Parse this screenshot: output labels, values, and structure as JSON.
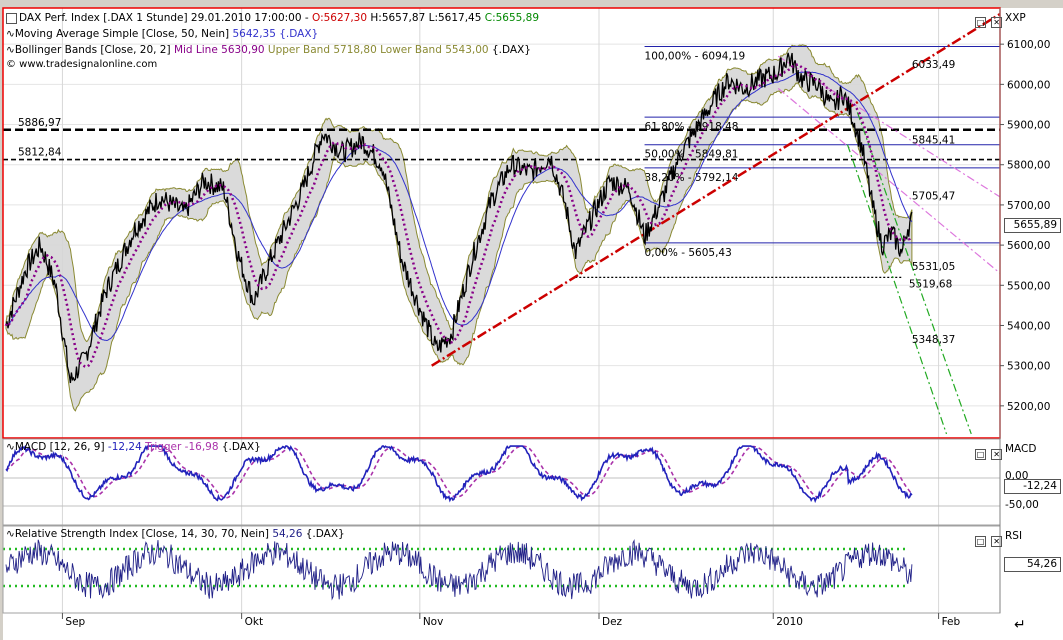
{
  "chart_data": [
    {
      "type": "line",
      "panel": "price",
      "header": {
        "title_prefix": "DAX Perf. Index [.DAX   1 Stunde] 29.01.2010 17:00:00 - ",
        "open": "O:5627,30",
        "high": "H:5657,87",
        "low": "L:5617,45",
        "close": "C:5655,89"
      },
      "legend": [
        {
          "label": "Moving Average Simple [Close, 50, Nein]",
          "value": "5642,35 {.DAX}"
        },
        {
          "label": "Bollinger Bands [Close, 20, 2]",
          "mid": "Mid Line 5630,90",
          "upper": "Upper Band 5718,80",
          "lower": "Lower Band 5543,00",
          "suffix": "{.DAX}"
        }
      ],
      "source": "© www.tradesignalonline.com",
      "ylim": [
        5120,
        6190
      ],
      "y_ticks": [
        "6100,00",
        "6000,00",
        "5900,00",
        "5800,00",
        "5700,00",
        "5600,00",
        "5500,00",
        "5400,00",
        "5300,00",
        "5200,00"
      ],
      "y_tick_values": [
        6100,
        6000,
        5900,
        5800,
        5700,
        5600,
        5500,
        5400,
        5300,
        5200
      ],
      "axis_label": "XXP",
      "last_value": "5655,89",
      "price_path": [
        [
          0.0,
          5400
        ],
        [
          0.02,
          5540
        ],
        [
          0.035,
          5600
        ],
        [
          0.05,
          5500
        ],
        [
          0.065,
          5260
        ],
        [
          0.08,
          5320
        ],
        [
          0.1,
          5480
        ],
        [
          0.13,
          5640
        ],
        [
          0.155,
          5720
        ],
        [
          0.18,
          5680
        ],
        [
          0.2,
          5760
        ],
        [
          0.22,
          5740
        ],
        [
          0.235,
          5570
        ],
        [
          0.25,
          5460
        ],
        [
          0.27,
          5580
        ],
        [
          0.3,
          5740
        ],
        [
          0.32,
          5880
        ],
        [
          0.34,
          5830
        ],
        [
          0.36,
          5860
        ],
        [
          0.38,
          5800
        ],
        [
          0.4,
          5560
        ],
        [
          0.42,
          5430
        ],
        [
          0.435,
          5340
        ],
        [
          0.45,
          5380
        ],
        [
          0.47,
          5560
        ],
        [
          0.49,
          5710
        ],
        [
          0.51,
          5800
        ],
        [
          0.53,
          5780
        ],
        [
          0.55,
          5820
        ],
        [
          0.565,
          5700
        ],
        [
          0.575,
          5580
        ],
        [
          0.59,
          5660
        ],
        [
          0.61,
          5760
        ],
        [
          0.63,
          5740
        ],
        [
          0.645,
          5620
        ],
        [
          0.66,
          5700
        ],
        [
          0.68,
          5820
        ],
        [
          0.7,
          5900
        ],
        [
          0.715,
          5960
        ],
        [
          0.73,
          6010
        ],
        [
          0.745,
          5990
        ],
        [
          0.76,
          6010
        ],
        [
          0.78,
          6030
        ],
        [
          0.79,
          6070
        ],
        [
          0.805,
          6010
        ],
        [
          0.82,
          6000
        ],
        [
          0.835,
          5940
        ],
        [
          0.845,
          5980
        ],
        [
          0.855,
          5920
        ],
        [
          0.865,
          5840
        ],
        [
          0.875,
          5700
        ],
        [
          0.885,
          5600
        ],
        [
          0.895,
          5630
        ],
        [
          0.905,
          5580
        ],
        [
          0.91,
          5640
        ],
        [
          0.915,
          5660
        ]
      ],
      "fib_levels": [
        {
          "label": "100,00% - 6094,19",
          "value": 6094.19
        },
        {
          "label": "61,80% - 5918,48",
          "value": 5918.48
        },
        {
          "label": "50,00% - 5849,81",
          "value": 5849.81
        },
        {
          "label": "38,20% - 5792,14",
          "value": 5792.14
        },
        {
          "label": "0,00% - 5605,43",
          "value": 5605.43
        }
      ],
      "horizontal_lines": [
        {
          "label": "5886,97",
          "value": 5886.97
        },
        {
          "label": "5812,84",
          "value": 5812.84
        },
        {
          "label": "5519,68",
          "value": 5519.68
        }
      ],
      "trendline_labels": [
        {
          "label": "6033,49",
          "value": 6033.49,
          "color": "#cc0000"
        },
        {
          "label": "5845,41",
          "value": 5845.41,
          "color": "#dd77dd"
        },
        {
          "label": "5705,47",
          "value": 5705.47,
          "color": "#dd77dd"
        },
        {
          "label": "5531,05",
          "value": 5531.05,
          "color": "#22aa22"
        },
        {
          "label": "5348,37",
          "value": 5348.37,
          "color": "#22aa22"
        }
      ]
    },
    {
      "type": "line",
      "panel": "macd",
      "header": {
        "label": "MACD [12, 26, 9]",
        "value": "-12,24",
        "trigger": "Trigger -16,98",
        "suffix": "{.DAX}"
      },
      "ylim": [
        -70,
        40
      ],
      "y_ticks": [
        "0,00",
        "-50,00"
      ],
      "y_tick_values": [
        0,
        -50
      ],
      "axis_label": "MACD",
      "last_value": "-12,24"
    },
    {
      "type": "line",
      "panel": "rsi",
      "header": {
        "label": "Relative Strength Index [Close, 14, 30, 70, Nein]",
        "value": "54,26",
        "suffix": "{.DAX}"
      },
      "ylim": [
        15,
        85
      ],
      "levels": [
        30,
        70
      ],
      "axis_label": "RSI",
      "last_value": "54,26"
    }
  ],
  "x_axis": {
    "labels": [
      {
        "text": "Sep",
        "pos": 0.057
      },
      {
        "text": "Okt",
        "pos": 0.238
      },
      {
        "text": "Nov",
        "pos": 0.418
      },
      {
        "text": "Dez",
        "pos": 0.599
      },
      {
        "text": "2010",
        "pos": 0.775
      },
      {
        "text": "Feb",
        "pos": 0.942
      }
    ]
  },
  "colors": {
    "price": "#000000",
    "moving_average": "#3333cc",
    "bollinger_mid": "#880088",
    "bollinger_fill": "#d8d8d8",
    "bollinger_border": "#8a8a33",
    "fib": "#2222aa",
    "trend_red": "#cc0000",
    "trend_magenta": "#dd77dd",
    "trend_green": "#22aa22",
    "macd": "#2222bb",
    "macd_trigger": "#aa33aa",
    "rsi": "#222288",
    "rsi_bands": "#22bb22",
    "frame_red": "#ee0000"
  }
}
